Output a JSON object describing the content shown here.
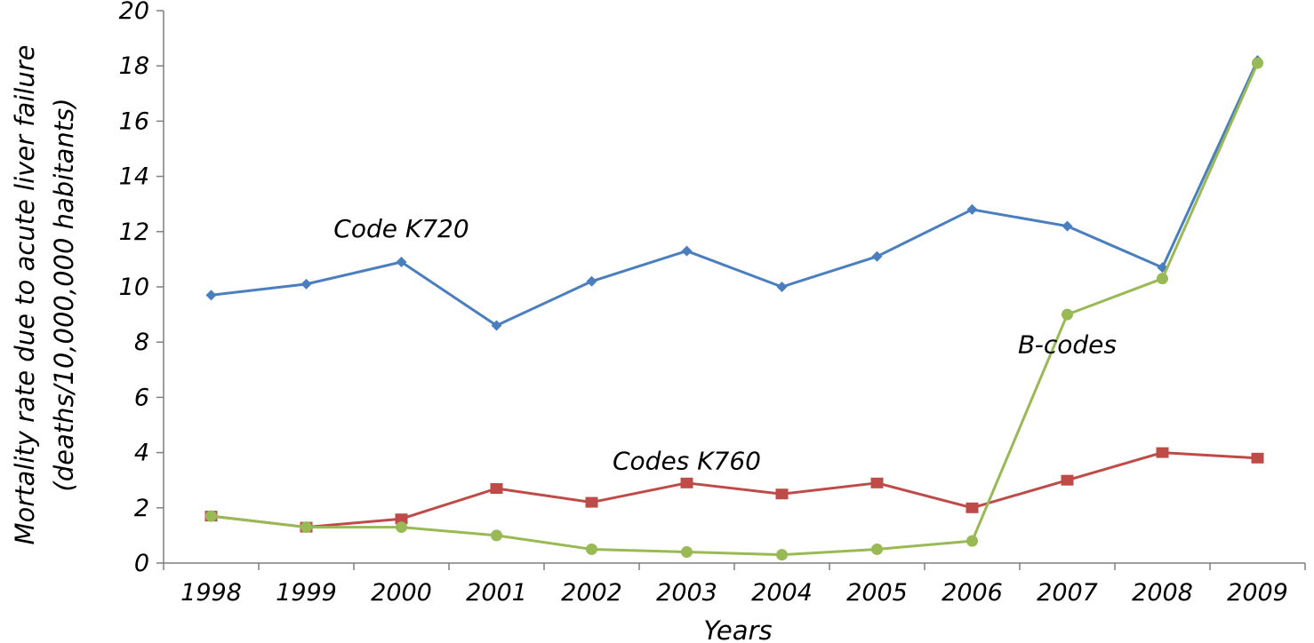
{
  "chart_data": {
    "type": "line",
    "title": "",
    "xlabel": "Years",
    "ylabel": [
      "Mortality rate due to acute liver failure",
      "(deaths/10,000,000 habitants)"
    ],
    "categories": [
      "1998",
      "1999",
      "2000",
      "2001",
      "2002",
      "2003",
      "2004",
      "2005",
      "2006",
      "2007",
      "2008",
      "2009"
    ],
    "ylim": [
      0,
      20
    ],
    "yticks": [
      0,
      2,
      4,
      6,
      8,
      10,
      12,
      14,
      16,
      18,
      20
    ],
    "grid": false,
    "legend": "none",
    "series": [
      {
        "name": "Code K720",
        "color": "#4a7ebf",
        "marker": "diamond",
        "values": [
          9.7,
          10.1,
          10.9,
          8.6,
          10.2,
          11.3,
          10.0,
          11.1,
          12.8,
          12.2,
          10.7,
          18.2
        ]
      },
      {
        "name": "Codes K760",
        "color": "#be4b48",
        "marker": "square",
        "values": [
          1.7,
          1.3,
          1.6,
          2.7,
          2.2,
          2.9,
          2.5,
          2.9,
          2.0,
          3.0,
          4.0,
          3.8
        ]
      },
      {
        "name": "B-codes",
        "color": "#98b954",
        "marker": "circle",
        "values": [
          1.7,
          1.3,
          1.3,
          1.0,
          0.5,
          0.4,
          0.3,
          0.5,
          0.8,
          9.0,
          10.3,
          18.1
        ]
      }
    ],
    "annotations": [
      {
        "text": "Code K720",
        "series": 0,
        "at": {
          "x": "2000",
          "y": 11.8
        }
      },
      {
        "text": "Codes K760",
        "series": 1,
        "at": {
          "x": "2003",
          "y": 3.4
        }
      },
      {
        "text": "B-codes",
        "series": 2,
        "at": {
          "x": "2007",
          "y": 7.6
        }
      }
    ]
  }
}
